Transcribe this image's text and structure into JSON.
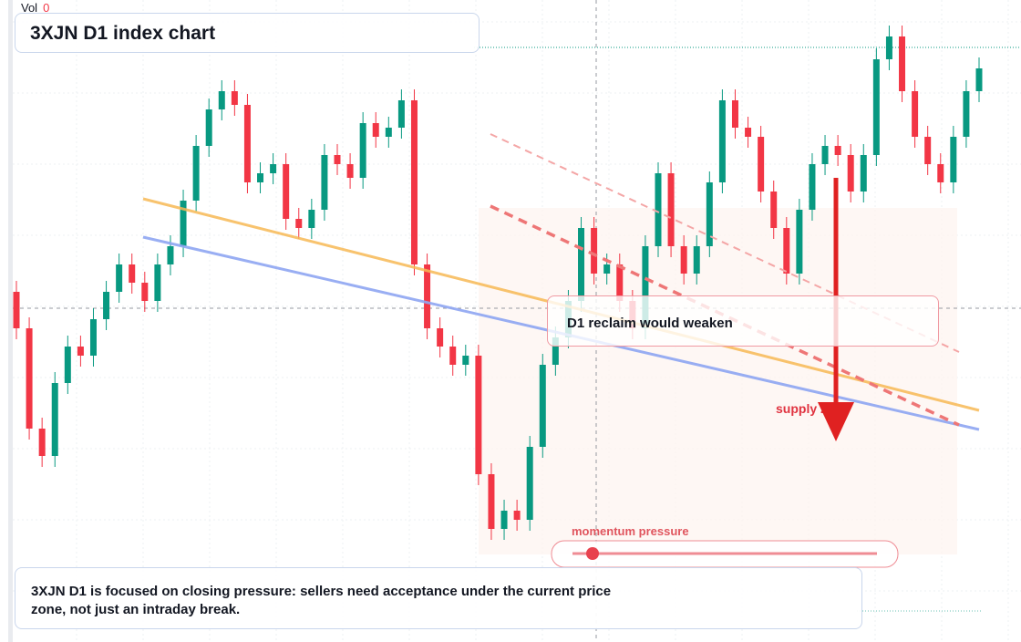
{
  "chart_data": {
    "type": "candlestick",
    "title": "3XJN D1 index chart",
    "volume_label": "Vol",
    "volume_value": 0,
    "open": [
      38.4,
      34.4,
      23.4,
      20.4,
      28.4,
      32.4,
      31.4,
      35.4,
      38.4,
      41.4,
      39.4,
      37.4,
      41.4,
      43.4,
      48.4,
      54.4,
      58.4,
      60.4,
      58.9,
      50.4,
      51.4,
      52.4,
      46.4,
      45.4,
      47.4,
      53.4,
      52.4,
      50.9,
      56.9,
      55.4,
      56.4,
      59.4,
      41.4,
      34.4,
      32.4,
      30.4,
      31.4,
      18.4,
      12.4,
      14.4,
      13.4,
      21.4,
      30.4,
      33.4,
      37.4,
      45.4,
      40.4,
      41.4,
      37.4,
      34.4,
      43.4,
      51.4,
      43.4,
      40.4,
      43.4,
      50.4,
      59.4,
      56.4,
      55.4,
      49.4,
      45.4,
      40.4,
      47.4,
      52.4,
      54.4,
      53.4,
      49.4,
      53.4,
      63.9,
      66.4,
      60.4,
      55.4,
      52.4,
      50.4,
      55.4,
      60.4
    ],
    "high": [
      39.6,
      35.6,
      24.6,
      29.6,
      33.6,
      33.6,
      36.6,
      39.6,
      42.6,
      42.6,
      40.6,
      42.6,
      44.6,
      49.6,
      55.6,
      59.6,
      61.6,
      61.6,
      60.1,
      52.6,
      53.6,
      53.6,
      47.6,
      48.6,
      54.6,
      54.6,
      53.6,
      58.1,
      58.1,
      57.6,
      60.6,
      60.6,
      42.6,
      35.6,
      33.6,
      32.6,
      32.6,
      19.6,
      15.6,
      15.6,
      22.6,
      31.6,
      34.6,
      38.6,
      46.6,
      46.6,
      42.6,
      42.6,
      38.6,
      44.6,
      52.6,
      52.6,
      44.6,
      44.6,
      51.6,
      60.6,
      60.6,
      57.6,
      56.6,
      50.6,
      46.6,
      48.6,
      53.6,
      55.6,
      55.6,
      54.6,
      54.6,
      65.1,
      67.6,
      67.6,
      61.6,
      56.6,
      53.6,
      56.6,
      61.6,
      64.1
    ],
    "low": [
      33.2,
      22.2,
      19.2,
      19.2,
      27.2,
      30.2,
      30.2,
      34.2,
      37.2,
      38.2,
      36.2,
      36.2,
      40.2,
      42.2,
      47.2,
      53.2,
      57.2,
      57.7,
      49.2,
      49.2,
      50.2,
      45.2,
      44.2,
      44.2,
      46.2,
      51.2,
      49.7,
      49.7,
      54.2,
      54.2,
      55.2,
      40.2,
      33.2,
      31.2,
      29.2,
      29.2,
      17.2,
      11.2,
      11.2,
      12.2,
      12.2,
      20.2,
      29.2,
      32.2,
      36.2,
      39.2,
      39.2,
      36.2,
      33.2,
      33.2,
      42.2,
      42.2,
      39.2,
      39.2,
      42.2,
      49.2,
      55.2,
      54.2,
      48.2,
      44.2,
      39.2,
      39.2,
      46.2,
      51.2,
      52.2,
      48.2,
      48.2,
      52.2,
      62.7,
      59.2,
      54.2,
      51.2,
      49.2,
      49.2,
      54.2,
      59.2
    ],
    "close": [
      34.4,
      23.4,
      20.4,
      28.4,
      32.4,
      31.4,
      35.4,
      38.4,
      41.4,
      39.4,
      37.4,
      41.4,
      43.4,
      48.4,
      54.4,
      58.4,
      60.4,
      58.9,
      50.4,
      51.4,
      52.4,
      46.4,
      45.4,
      47.4,
      53.4,
      52.4,
      50.9,
      56.9,
      55.4,
      56.4,
      59.4,
      41.4,
      34.4,
      32.4,
      30.4,
      31.4,
      18.4,
      12.4,
      14.4,
      13.4,
      21.4,
      30.4,
      33.4,
      37.4,
      45.4,
      40.4,
      41.4,
      37.4,
      34.4,
      43.4,
      51.4,
      43.4,
      40.4,
      43.4,
      50.4,
      59.4,
      56.4,
      55.4,
      49.4,
      45.4,
      40.4,
      47.4,
      52.4,
      54.4,
      53.4,
      49.4,
      53.4,
      63.9,
      66.4,
      60.4,
      55.4,
      52.4,
      50.4,
      55.4,
      60.4,
      62.9
    ],
    "up_color": "#089981",
    "down_color": "#f23645",
    "ylim": [
      0,
      70.4
    ],
    "annotations": {
      "reclaim": "D1 reclaim would weaken",
      "supply": "supply zone",
      "momentum": "momentum pressure",
      "note": "3XJN D1 is focused on closing pressure: sellers need acceptance under the current price zone, not just an intraday break."
    }
  }
}
